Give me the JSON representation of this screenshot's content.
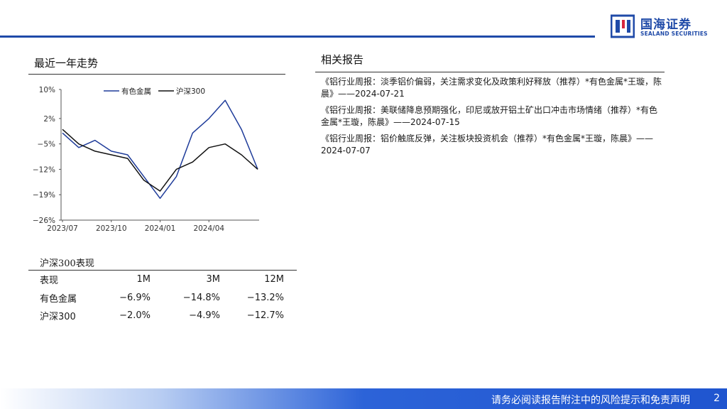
{
  "header": {
    "logo_cn": "国海证券",
    "logo_en": "SEALAND SECURITIES",
    "brand_color": "#1f4aa8"
  },
  "left": {
    "section_title": "最近一年走势"
  },
  "chart_data": {
    "type": "line",
    "title": "",
    "xlabel": "",
    "ylabel": "",
    "x_ticks": [
      "2023/07",
      "2023/10",
      "2024/01",
      "2024/04"
    ],
    "y_ticks": [
      "10%",
      "2%",
      "−5%",
      "−12%",
      "−19%",
      "−26%"
    ],
    "ylim": [
      -26,
      10
    ],
    "legend_position": "top",
    "x": [
      "2023/07",
      "2023/08",
      "2023/09",
      "2023/10",
      "2023/11",
      "2023/12",
      "2024/01",
      "2024/02",
      "2024/03",
      "2024/04",
      "2024/05",
      "2024/06",
      "2024/07"
    ],
    "series": [
      {
        "name": "有色金属",
        "color": "#1f3c9a",
        "values": [
          -2,
          -6,
          -4,
          -7,
          -8,
          -14,
          -20,
          -14,
          -2,
          2,
          7,
          -1,
          -12
        ]
      },
      {
        "name": "沪深300",
        "color": "#111111",
        "values": [
          -1,
          -5,
          -7,
          -8,
          -9,
          -15,
          -18,
          -12,
          -10,
          -6,
          -5,
          -8,
          -12
        ]
      }
    ]
  },
  "performance": {
    "title": "沪深300表现",
    "headers": [
      "表现",
      "1M",
      "3M",
      "12M"
    ],
    "rows": [
      [
        "有色金属",
        "−6.9%",
        "−14.8%",
        "−13.2%"
      ],
      [
        "沪深300",
        "−2.0%",
        "−4.9%",
        "−12.7%"
      ]
    ]
  },
  "related": {
    "section_title": "相关报告",
    "reports": [
      "《铝行业周报：淡季铝价偏弱，关注需求变化及政策利好释放（推荐）*有色金属*王璇，陈晨》——2024-07-21",
      "《铝行业周报：美联储降息预期强化，印尼或放开铝土矿出口冲击市场情绪（推荐）*有色金属*王璇，陈晨》——2024-07-15",
      "《铝行业周报：铝价触底反弹，关注板块投资机会（推荐）*有色金属*王璇，陈晨》——2024-07-07"
    ]
  },
  "footer": {
    "disclaimer": "请务必阅读报告附注中的风险提示和免责声明",
    "page": "2"
  }
}
